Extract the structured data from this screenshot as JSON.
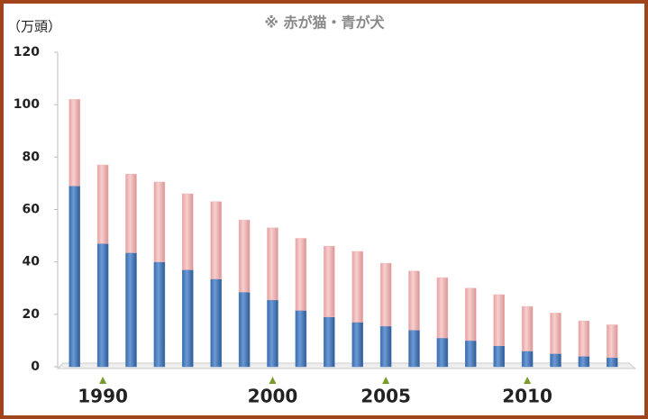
{
  "chart_data": {
    "type": "stacked_bar",
    "title": "※ 赤が猫・青が犬",
    "y_label": "（万頭）",
    "categories": [
      null,
      "1990",
      null,
      null,
      null,
      null,
      null,
      "2000",
      null,
      null,
      null,
      "2005",
      null,
      null,
      null,
      null,
      "2010",
      null,
      null,
      null
    ],
    "series": [
      {
        "color": "#4f81bd",
        "values": [
          69,
          47,
          43.5,
          40,
          37,
          33.5,
          28.5,
          25.5,
          21.5,
          19,
          17,
          15.5,
          14,
          11,
          10,
          8,
          6,
          5,
          4,
          3.5
        ]
      },
      {
        "color": "#f2b8b8",
        "values": [
          33,
          30,
          30,
          30.5,
          29,
          29.5,
          27.5,
          27.5,
          27.5,
          27,
          27,
          24,
          22.5,
          23,
          20,
          19.5,
          17,
          15.5,
          13.5,
          12.5
        ]
      }
    ],
    "ylim": [
      0,
      120
    ],
    "yticks": [
      0,
      20,
      40,
      60,
      80,
      100,
      120
    ],
    "grid": false
  }
}
